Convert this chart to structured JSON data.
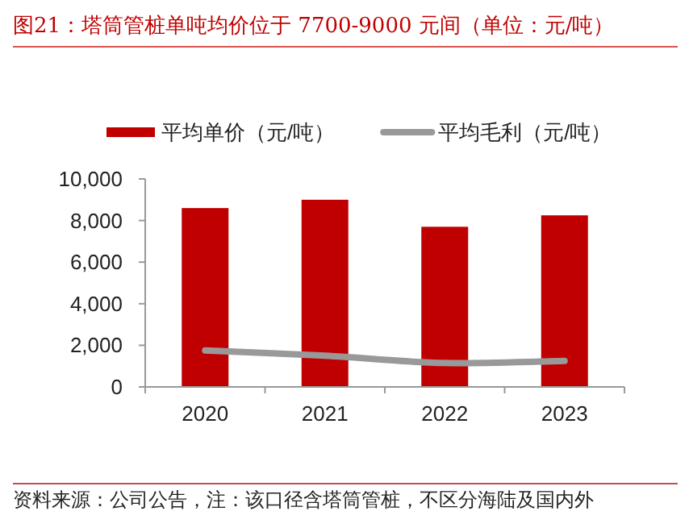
{
  "chart_data": {
    "type": "bar",
    "title": "图21：塔筒管桩单吨均价位于 7700-9000 元间（单位：元/吨）",
    "categories": [
      "2020",
      "2021",
      "2022",
      "2023"
    ],
    "series": [
      {
        "name": "平均单价（元/吨）",
        "color": "#c00000",
        "values": [
          8600,
          9000,
          7700,
          8250
        ]
      },
      {
        "name": "平均毛利（元/吨）",
        "type": "line",
        "color": "#999999",
        "values": [
          1750,
          1500,
          1150,
          1250
        ]
      }
    ],
    "ylim": [
      0,
      10000
    ],
    "yticks": [
      {
        "value": 0,
        "label": "0"
      },
      {
        "value": 2000,
        "label": "2,000"
      },
      {
        "value": 4000,
        "label": "4,000"
      },
      {
        "value": 6000,
        "label": "6,000"
      },
      {
        "value": 8000,
        "label": "8,000"
      },
      {
        "value": 10000,
        "label": "10,000"
      }
    ],
    "legend": "top",
    "grid": false,
    "annotations": [
      "资料来源：公司公告，注：该口径含塔筒管桩，不区分海陆及国内外"
    ]
  }
}
